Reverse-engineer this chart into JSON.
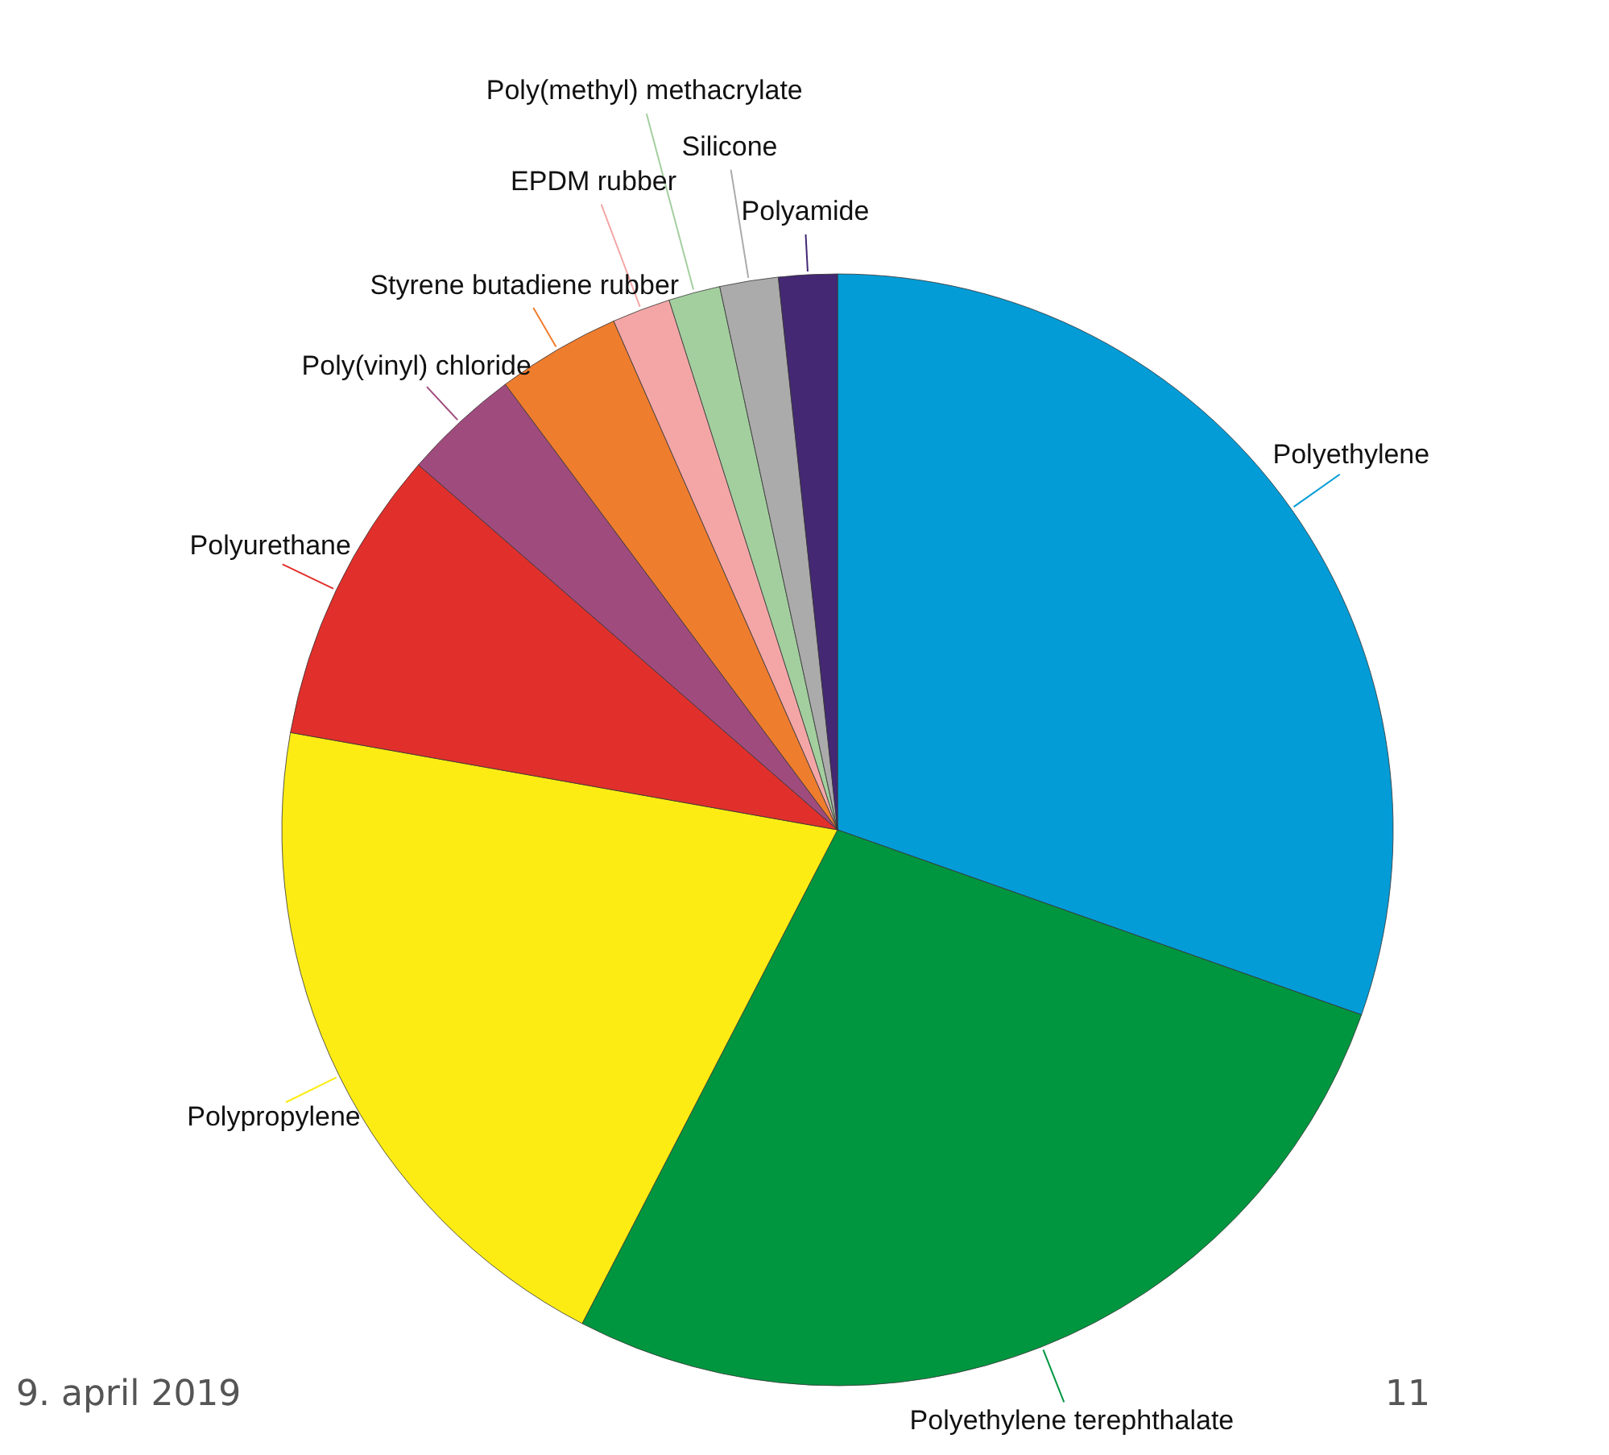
{
  "chart_data": {
    "type": "pie",
    "categories": [
      "Polyethylene",
      "Polyethylene terephthalate",
      "Polypropylene",
      "Polyurethane",
      "Poly(vinyl) chloride",
      "Styrene butadiene rubber",
      "EPDM rubber",
      "Poly(methyl) methacrylate",
      "Silicone",
      "Polyamide"
    ],
    "values": [
      30.4,
      27.2,
      20.2,
      8.6,
      3.4,
      3.6,
      1.7,
      1.5,
      1.7,
      1.7
    ],
    "colors": [
      "#049cd6",
      "#00963f",
      "#fcec13",
      "#e1302c",
      "#a04b7d",
      "#ef7d2e",
      "#f4a6a6",
      "#a3cf9f",
      "#ababab",
      "#442873"
    ],
    "annotations": [
      "9. april 2019",
      "11"
    ]
  }
}
